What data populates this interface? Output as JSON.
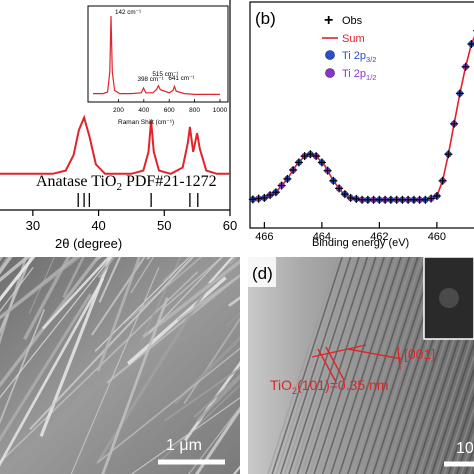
{
  "chart_data": [
    {
      "panel": "a",
      "type": "line",
      "xlabel": "2θ (degree)",
      "x_ticks": [
        "30",
        "40",
        "50",
        "60"
      ],
      "xlim": [
        25,
        60
      ],
      "reference_label_prefix": "Anatase TiO",
      "reference_label_sub": "2",
      "reference_label_suffix": " PDF#21-1272",
      "reference_lines": [
        36.9,
        37.8,
        38.6,
        48.0,
        53.9,
        55.1
      ],
      "series": [
        {
          "x": [
            25,
            27,
            29,
            31,
            33,
            35,
            36.2,
            37.0,
            37.8,
            38.6,
            39.6,
            41,
            43,
            45,
            46.8,
            47.6,
            48.0,
            48.4,
            49.2,
            51,
            52.8,
            53.6,
            53.9,
            54.4,
            55.0,
            55.4,
            56.4,
            58,
            60
          ],
          "y": [
            10,
            10,
            10,
            10,
            10,
            11,
            16,
            24,
            28,
            22,
            13,
            10,
            10,
            10,
            11,
            17,
            27,
            17,
            11,
            10,
            12,
            20,
            25,
            17,
            23,
            18,
            11,
            10,
            10
          ]
        }
      ],
      "color": "#e0242a",
      "inset": {
        "type": "line",
        "xlabel": "Raman Shift (cm⁻¹)",
        "x_ticks": [
          "200",
          "400",
          "600",
          "800",
          "1000"
        ],
        "xlim": [
          0,
          1000
        ],
        "ylim": [
          0,
          100
        ],
        "annotations": [
          {
            "x": 142,
            "y": 100,
            "text": "142 cm⁻¹"
          },
          {
            "x": 398,
            "y": 14,
            "text": "398 cm⁻¹"
          },
          {
            "x": 515,
            "y": 20,
            "text": "515 cm⁻¹"
          },
          {
            "x": 641,
            "y": 15,
            "text": "641 cm⁻¹"
          }
        ],
        "series": [
          {
            "x": [
              0,
              80,
              115,
              132,
              142,
              152,
              170,
              210,
              300,
              380,
              398,
              416,
              470,
              500,
              515,
              530,
              600,
              630,
              641,
              655,
              720,
              800,
              1000
            ],
            "y": [
              3,
              3,
              5,
              30,
              100,
              30,
              7,
              3,
              3,
              4,
              10,
              4,
              4,
              8,
              13,
              8,
              4,
              7,
              12,
              6,
              3,
              2,
              2
            ]
          }
        ],
        "color": "#e0242a"
      }
    },
    {
      "panel": "b",
      "type": "line",
      "label": "(b)",
      "xlabel": "Binding energy (eV)",
      "x_ticks": [
        "466",
        "464",
        "462",
        "460"
      ],
      "xlim": [
        466.5,
        458.5
      ],
      "ylim": [
        0,
        100
      ],
      "legend_position": "top-left",
      "legend": [
        {
          "key": "obs",
          "label": "Obs",
          "marker": "+",
          "color": "#000000"
        },
        {
          "key": "sum",
          "label": "Sum",
          "marker": "line",
          "color": "#e0242a"
        },
        {
          "key": "ti32",
          "label_main": "Ti 2p",
          "label_sub": "3/2",
          "marker": "ball",
          "color": "#2b4fc9"
        },
        {
          "key": "ti12",
          "label_main": "Ti 2p",
          "label_sub": "1/2",
          "marker": "ball",
          "color": "#8a35c9"
        }
      ],
      "series": [
        {
          "name": "Sum",
          "x": [
            466.5,
            466.0,
            465.6,
            465.2,
            464.9,
            464.6,
            464.4,
            464.2,
            463.9,
            463.6,
            463.3,
            463.0,
            462.6,
            462.0,
            461.0,
            460.3,
            460.0,
            459.8,
            459.6,
            459.4,
            459.2,
            459.0,
            458.8,
            458.6,
            458.5
          ],
          "y": [
            8,
            9,
            12,
            19,
            26,
            31,
            32,
            31,
            26,
            18,
            12,
            9,
            8,
            8,
            8,
            8,
            10,
            18,
            32,
            48,
            64,
            78,
            90,
            97,
            100
          ]
        }
      ]
    },
    {
      "panel": "c",
      "type": "image",
      "scale_bar_label": "1 μm"
    },
    {
      "panel": "d",
      "type": "image",
      "label": "(d)",
      "annotation_direction": "[001]",
      "annotation_plane_prefix": "TiO",
      "annotation_plane_sub": "2",
      "annotation_plane_suffix": "(101)=0.35 nm",
      "scale_bar_label": "10"
    }
  ]
}
